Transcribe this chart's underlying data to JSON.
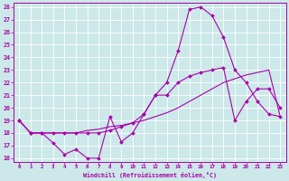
{
  "xlabel": "Windchill (Refroidissement éolien,°C)",
  "bg_color": "#cce8e8",
  "line_color": "#aa00aa",
  "xlim": [
    -0.5,
    23.5
  ],
  "ylim": [
    15.7,
    28.3
  ],
  "yticks": [
    16,
    17,
    18,
    19,
    20,
    21,
    22,
    23,
    24,
    25,
    26,
    27,
    28
  ],
  "xticks": [
    0,
    1,
    2,
    3,
    4,
    5,
    6,
    7,
    8,
    9,
    10,
    11,
    12,
    13,
    14,
    15,
    16,
    17,
    18,
    19,
    20,
    21,
    22,
    23
  ],
  "line_zigzag_x": [
    0,
    1,
    2,
    3,
    4,
    5,
    6,
    7,
    8,
    9,
    10,
    11,
    12,
    13,
    14,
    15,
    16,
    17,
    18,
    19,
    20,
    21,
    22,
    23
  ],
  "line_zigzag_y": [
    19.0,
    18.0,
    18.0,
    17.2,
    16.3,
    16.7,
    16.0,
    16.0,
    19.3,
    17.3,
    18.0,
    19.5,
    21.0,
    21.0,
    22.0,
    22.5,
    22.8,
    23.0,
    23.2,
    19.0,
    20.5,
    21.5,
    21.5,
    20.0
  ],
  "line_peak_x": [
    0,
    1,
    2,
    3,
    4,
    5,
    6,
    7,
    8,
    9,
    10,
    11,
    12,
    13,
    14,
    15,
    16,
    17,
    18,
    19,
    20,
    21,
    22,
    23
  ],
  "line_peak_y": [
    19.0,
    18.0,
    18.0,
    18.0,
    18.0,
    18.0,
    18.0,
    18.0,
    18.2,
    18.5,
    18.8,
    19.5,
    21.0,
    22.0,
    24.5,
    27.8,
    28.0,
    27.3,
    25.6,
    23.0,
    22.0,
    20.5,
    19.5,
    19.3
  ],
  "line_diag_x": [
    0,
    1,
    2,
    3,
    4,
    5,
    6,
    7,
    8,
    9,
    10,
    11,
    12,
    13,
    14,
    15,
    16,
    17,
    18,
    19,
    20,
    21,
    22,
    23
  ],
  "line_diag_y": [
    19.0,
    18.0,
    18.0,
    18.0,
    18.0,
    18.0,
    18.2,
    18.3,
    18.5,
    18.6,
    18.8,
    19.0,
    19.3,
    19.6,
    20.0,
    20.5,
    21.0,
    21.5,
    22.0,
    22.3,
    22.6,
    22.8,
    23.0,
    19.3
  ]
}
